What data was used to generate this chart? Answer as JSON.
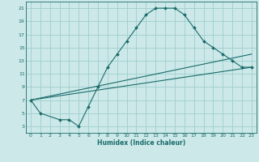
{
  "xlabel": "Humidex (Indice chaleur)",
  "ylabel": "",
  "bg_color": "#cce8e8",
  "grid_color": "#9ecece",
  "line_color": "#1a6b6b",
  "xlim": [
    -0.5,
    23.5
  ],
  "ylim": [
    2,
    22
  ],
  "xticks": [
    0,
    1,
    2,
    3,
    4,
    5,
    6,
    7,
    8,
    9,
    10,
    11,
    12,
    13,
    14,
    15,
    16,
    17,
    18,
    19,
    20,
    21,
    22,
    23
  ],
  "yticks": [
    3,
    5,
    7,
    9,
    11,
    13,
    15,
    17,
    19,
    21
  ],
  "line1_x": [
    0,
    1,
    3,
    4,
    5,
    6,
    7,
    8,
    9,
    10,
    11,
    12,
    13,
    14,
    15,
    16,
    17,
    18,
    19,
    20,
    21,
    22,
    23
  ],
  "line1_y": [
    7,
    5,
    4,
    4,
    3,
    6,
    9,
    12,
    14,
    16,
    18,
    20,
    21,
    21,
    21,
    20,
    18,
    16,
    15,
    14,
    13,
    12,
    12
  ],
  "line2_x": [
    0,
    23
  ],
  "line2_y": [
    7,
    12
  ],
  "line3_x": [
    0,
    23
  ],
  "line3_y": [
    7,
    12
  ]
}
